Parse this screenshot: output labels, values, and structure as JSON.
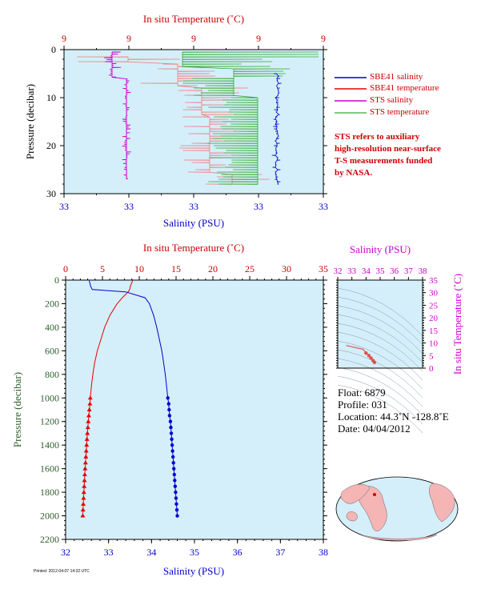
{
  "colors": {
    "plot_bg": "#d4effa",
    "temperature": "#e60000",
    "salinity": "#0000cc",
    "sts_salinity": "#cc00cc",
    "sts_temperature": "#33aa33",
    "sts_temp_fill": "#f08080",
    "axis_salinity": "#0000cc",
    "axis_temperature": "#cc0000",
    "axis_pressure": "#2e5e2e",
    "ts_axis": "#cc00cc"
  },
  "legend": [
    {
      "label": "SBE41 salinity",
      "color": "#0000cc"
    },
    {
      "label": "SBE41 temperature",
      "color": "#e60000"
    },
    {
      "label": "STS salinity",
      "color": "#cc00cc"
    },
    {
      "label": "STS temperature",
      "color": "#55bb55"
    }
  ],
  "note": [
    "STS refers to auxiliary",
    "high-resolution near-surface",
    "T-S measurements funded",
    "by NASA."
  ],
  "info": {
    "float": "Float:  6879",
    "profile": "Profile:  031",
    "location": "Location:  44.3˚N  -128.8˚E",
    "date": "Date:  04/04/2012"
  },
  "footer": "Printed: 2012-04-07 14:32 UTC",
  "chart_data": [
    {
      "type": "line",
      "title": "",
      "top_xlabel": "In situ Temperature (˚C)",
      "xlabel": "Salinity (PSU)",
      "ylabel": "Pressure (decibar)",
      "top_ticks": [
        "9",
        "9",
        "9",
        "9",
        "9"
      ],
      "bottom_ticks": [
        "33",
        "33",
        "33",
        "33",
        "33"
      ],
      "yticks": [
        0,
        10,
        20,
        30
      ],
      "ylim": [
        0,
        30
      ],
      "series": [
        {
          "name": "STS salinity"
        },
        {
          "name": "STS temperature"
        }
      ]
    },
    {
      "type": "line",
      "title": "",
      "top_xlabel": "In situ Temperature (˚C)",
      "xlabel": "Salinity (PSU)",
      "ylabel": "Pressure (decibar)",
      "temp_range": [
        0,
        35
      ],
      "temp_ticks": [
        0,
        5,
        10,
        15,
        20,
        25,
        30,
        35
      ],
      "sal_range": [
        32,
        38
      ],
      "sal_ticks": [
        32,
        33,
        34,
        35,
        36,
        37,
        38
      ],
      "ylim": [
        0,
        2200
      ],
      "yticks": [
        0,
        200,
        400,
        600,
        800,
        1000,
        1200,
        1400,
        1600,
        1800,
        2000,
        2200
      ],
      "series": [
        {
          "name": "SBE41 temperature",
          "axis": "temperature",
          "pressure": [
            5,
            20,
            50,
            80,
            100,
            150,
            200,
            250,
            300,
            400,
            500,
            600,
            700,
            800,
            900,
            1000,
            1050,
            1100,
            1150,
            1200,
            1250,
            1300,
            1350,
            1400,
            1450,
            1500,
            1550,
            1600,
            1650,
            1700,
            1750,
            1800,
            1850,
            1900,
            1950,
            2000
          ],
          "values": [
            9.1,
            9.0,
            8.8,
            8.7,
            8.5,
            7.7,
            7.0,
            6.5,
            6.0,
            5.3,
            4.8,
            4.3,
            3.95,
            3.7,
            3.5,
            3.35,
            3.3,
            3.22,
            3.15,
            3.08,
            3.02,
            2.96,
            2.9,
            2.85,
            2.8,
            2.75,
            2.7,
            2.65,
            2.6,
            2.56,
            2.52,
            2.48,
            2.44,
            2.4,
            2.36,
            2.33
          ]
        },
        {
          "name": "SBE41 salinity",
          "axis": "salinity",
          "pressure": [
            5,
            20,
            50,
            80,
            100,
            150,
            200,
            250,
            300,
            400,
            500,
            600,
            700,
            800,
            900,
            1000,
            1050,
            1100,
            1150,
            1200,
            1250,
            1300,
            1350,
            1400,
            1450,
            1500,
            1550,
            1600,
            1650,
            1700,
            1750,
            1800,
            1850,
            1900,
            1950,
            2000
          ],
          "values": [
            32.55,
            32.56,
            32.58,
            32.62,
            33.4,
            33.85,
            33.95,
            34.0,
            34.05,
            34.12,
            34.18,
            34.24,
            34.28,
            34.32,
            34.35,
            34.38,
            34.4,
            34.41,
            34.42,
            34.44,
            34.45,
            34.46,
            34.47,
            34.48,
            34.49,
            34.5,
            34.51,
            34.52,
            34.53,
            34.54,
            34.55,
            34.56,
            34.57,
            34.58,
            34.59,
            34.6
          ]
        }
      ]
    },
    {
      "type": "scatter",
      "title": "",
      "xlabel": "Salinity (PSU)",
      "ylabel": "In situ Temperature (˚C)",
      "xlim": [
        32,
        38
      ],
      "ylim": [
        0,
        35
      ],
      "xticks": [
        32,
        33,
        34,
        35,
        36,
        37,
        38
      ],
      "yticks": [
        0,
        5,
        10,
        15,
        20,
        25,
        30,
        35
      ],
      "series": [
        {
          "name": "T-S",
          "x": [
            32.6,
            33.0,
            33.4,
            33.8,
            34.0,
            34.2,
            34.35,
            34.5,
            34.6
          ],
          "y": [
            9.0,
            8.5,
            8.0,
            7.5,
            6.0,
            5.0,
            4.0,
            3.0,
            2.3
          ]
        }
      ]
    }
  ]
}
